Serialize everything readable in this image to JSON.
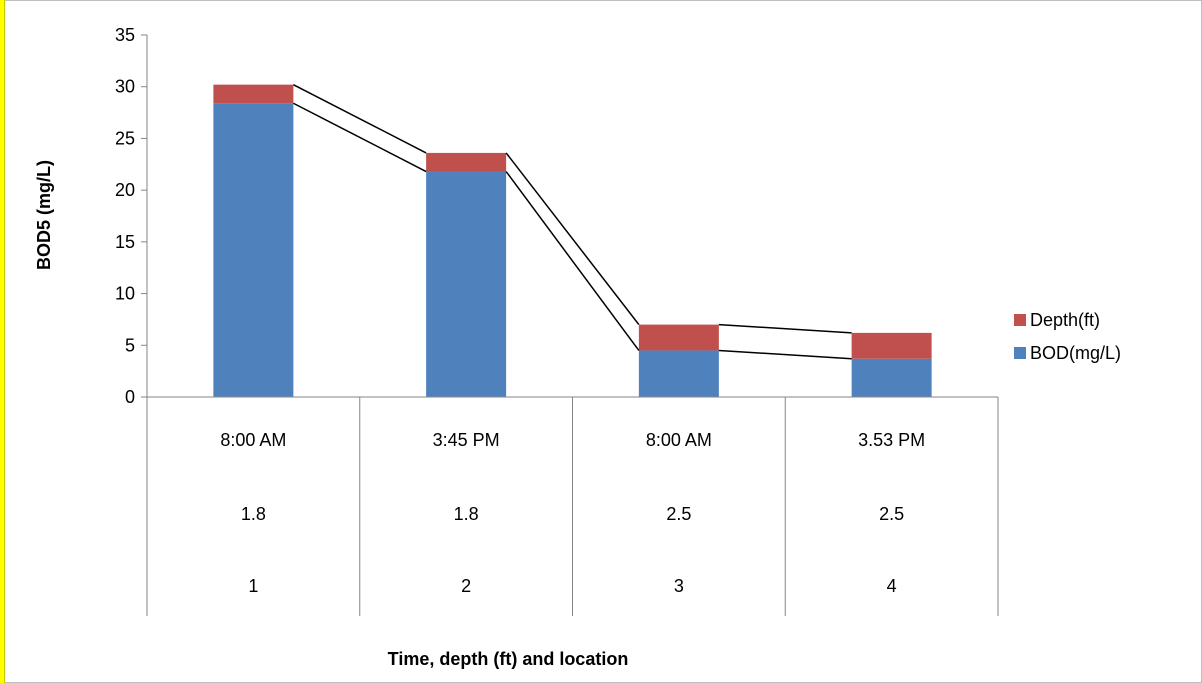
{
  "chart_data": {
    "type": "bar",
    "stacked": true,
    "categories": [
      {
        "time": "8:00 AM",
        "depth": "1.8",
        "location": "1"
      },
      {
        "time": "3:45 PM",
        "depth": "1.8",
        "location": "2"
      },
      {
        "time": "8:00 AM",
        "depth": "2.5",
        "location": "3"
      },
      {
        "time": "3.53 PM",
        "depth": "2.5",
        "location": "4"
      }
    ],
    "series": [
      {
        "name": "BOD(mg/L)",
        "color": "#4f81bd",
        "values": [
          28.4,
          21.8,
          4.5,
          3.7
        ]
      },
      {
        "name": "Depth(ft)",
        "color": "#c0504d",
        "values": [
          1.8,
          1.8,
          2.5,
          2.5
        ]
      }
    ],
    "series_lines": true,
    "xlabel": "Time, depth (ft) and location",
    "ylabel": "BOD5 (mg/L)",
    "ylim": [
      0,
      35
    ],
    "yticks": [
      0,
      5,
      10,
      15,
      20,
      25,
      30,
      35
    ],
    "grid": false,
    "legend_position": "right"
  }
}
